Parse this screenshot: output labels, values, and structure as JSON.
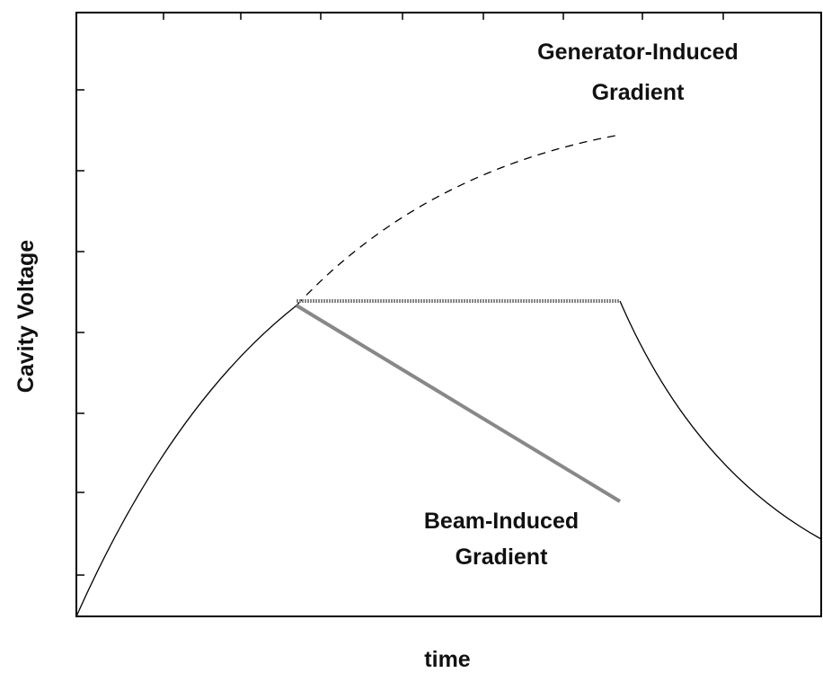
{
  "axes": {
    "x_label": "time",
    "y_label": "Cavity Voltage"
  },
  "annotations": {
    "generator": [
      "Generator-Induced",
      "Gradient"
    ],
    "beam": [
      "Beam-Induced",
      "Gradient"
    ]
  }
}
